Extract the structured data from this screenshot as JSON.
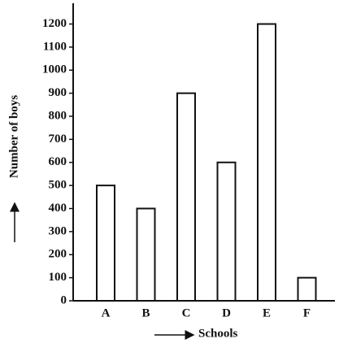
{
  "chart_data": {
    "type": "bar",
    "categories": [
      "A",
      "B",
      "C",
      "D",
      "E",
      "F"
    ],
    "values": [
      500,
      400,
      900,
      600,
      1200,
      100
    ],
    "color": "#ffffff",
    "ylim": [
      0,
      1290
    ],
    "yticks": [
      0,
      100,
      200,
      300,
      400,
      500,
      600,
      700,
      800,
      900,
      1000,
      1100,
      1200
    ],
    "xlabel": "Schools",
    "ylabel": "Number of boys"
  }
}
